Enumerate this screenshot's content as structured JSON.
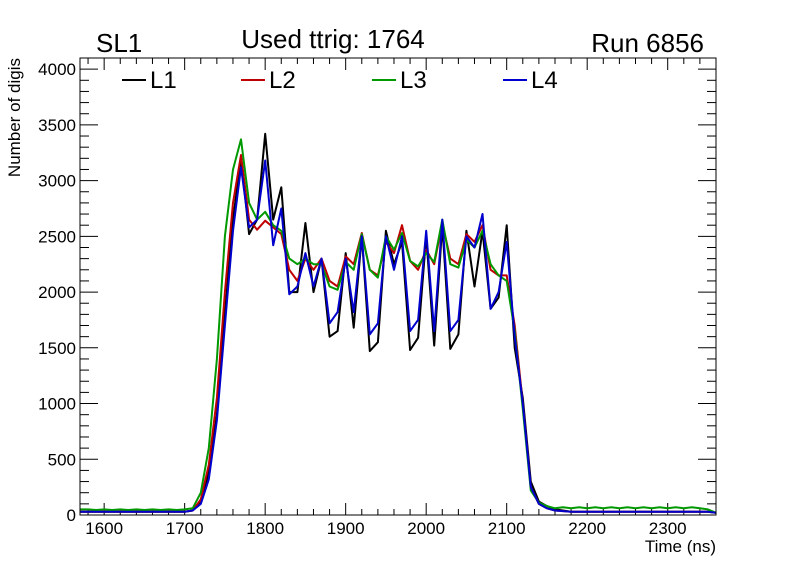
{
  "header": {
    "left_label": "SL1",
    "center_label": "Used ttrig: 1764",
    "right_label": "Run 6856"
  },
  "colors": {
    "L1": "#000000",
    "L2": "#c00000",
    "L3": "#009900",
    "L4": "#0000cc"
  },
  "chart_data": {
    "type": "line",
    "title": "Used ttrig: 1764",
    "xlabel": "Time (ns)",
    "ylabel": "Number of digis",
    "xlim": [
      1570,
      2360
    ],
    "ylim": [
      0,
      4100
    ],
    "xticks": [
      1600,
      1700,
      1800,
      1900,
      2000,
      2100,
      2200,
      2300
    ],
    "yticks": [
      0,
      500,
      1000,
      1500,
      2000,
      2500,
      3000,
      3500,
      4000
    ],
    "legend_position": "top",
    "x": [
      1570,
      1580,
      1590,
      1600,
      1610,
      1620,
      1630,
      1640,
      1650,
      1660,
      1670,
      1680,
      1690,
      1700,
      1710,
      1720,
      1730,
      1740,
      1750,
      1760,
      1770,
      1780,
      1790,
      1800,
      1810,
      1820,
      1830,
      1840,
      1850,
      1860,
      1870,
      1880,
      1890,
      1900,
      1910,
      1920,
      1930,
      1940,
      1950,
      1960,
      1970,
      1980,
      1990,
      2000,
      2010,
      2020,
      2030,
      2040,
      2050,
      2060,
      2070,
      2080,
      2090,
      2100,
      2110,
      2120,
      2130,
      2140,
      2150,
      2160,
      2170,
      2180,
      2190,
      2200,
      2210,
      2220,
      2230,
      2240,
      2250,
      2260,
      2270,
      2280,
      2290,
      2300,
      2310,
      2320,
      2330,
      2340,
      2350,
      2360
    ],
    "series": [
      {
        "name": "L1",
        "values": [
          30,
          30,
          30,
          30,
          30,
          30,
          30,
          30,
          30,
          30,
          30,
          30,
          30,
          30,
          40,
          120,
          380,
          900,
          1800,
          2650,
          3200,
          2520,
          2650,
          3420,
          2650,
          2940,
          2000,
          2000,
          2620,
          2000,
          2300,
          1600,
          1650,
          2350,
          1680,
          2500,
          1470,
          1550,
          2550,
          2250,
          2450,
          1480,
          1590,
          2500,
          1520,
          2600,
          1490,
          1620,
          2550,
          2050,
          2550,
          1850,
          1950,
          2600,
          1500,
          1050,
          300,
          120,
          80,
          50,
          40,
          30,
          30,
          30,
          30,
          30,
          30,
          30,
          30,
          30,
          30,
          30,
          30,
          30,
          30,
          30,
          30,
          30,
          30,
          20
        ]
      },
      {
        "name": "L2",
        "values": [
          30,
          30,
          30,
          30,
          30,
          30,
          30,
          30,
          30,
          30,
          30,
          30,
          30,
          30,
          40,
          140,
          450,
          1050,
          2000,
          2800,
          3230,
          2650,
          2560,
          2640,
          2580,
          2520,
          2200,
          2100,
          2300,
          2200,
          2300,
          2100,
          2050,
          2320,
          2250,
          2530,
          2200,
          2150,
          2450,
          2350,
          2600,
          2280,
          2200,
          2380,
          2250,
          2620,
          2300,
          2250,
          2520,
          2450,
          2600,
          2200,
          2150,
          2150,
          1700,
          1000,
          250,
          100,
          60,
          40,
          35,
          30,
          30,
          30,
          30,
          30,
          30,
          30,
          30,
          30,
          30,
          30,
          30,
          30,
          30,
          30,
          30,
          30,
          30,
          20
        ]
      },
      {
        "name": "L3",
        "values": [
          50,
          50,
          45,
          50,
          45,
          50,
          45,
          50,
          45,
          50,
          45,
          50,
          45,
          50,
          60,
          200,
          600,
          1400,
          2500,
          3100,
          3370,
          2800,
          2650,
          2720,
          2600,
          2550,
          2300,
          2250,
          2300,
          2250,
          2250,
          2050,
          2020,
          2270,
          2200,
          2520,
          2200,
          2130,
          2500,
          2380,
          2530,
          2280,
          2230,
          2350,
          2270,
          2650,
          2250,
          2220,
          2470,
          2400,
          2550,
          2250,
          2150,
          2100,
          1650,
          950,
          220,
          110,
          80,
          60,
          70,
          60,
          70,
          60,
          70,
          60,
          70,
          60,
          70,
          60,
          70,
          60,
          70,
          60,
          70,
          60,
          70,
          60,
          50,
          20
        ]
      },
      {
        "name": "L4",
        "values": [
          30,
          30,
          30,
          30,
          30,
          30,
          30,
          30,
          30,
          30,
          30,
          30,
          30,
          30,
          40,
          100,
          320,
          850,
          1700,
          2550,
          3120,
          2580,
          2650,
          3180,
          2420,
          2750,
          1980,
          2050,
          2350,
          2050,
          2300,
          1720,
          1820,
          2300,
          1820,
          2500,
          1620,
          1720,
          2500,
          2200,
          2500,
          1650,
          1750,
          2550,
          1650,
          2650,
          1650,
          1750,
          2500,
          2400,
          2700,
          1850,
          2000,
          2450,
          1600,
          1000,
          250,
          100,
          60,
          40,
          35,
          30,
          30,
          30,
          30,
          30,
          30,
          30,
          30,
          30,
          30,
          30,
          30,
          30,
          30,
          30,
          30,
          30,
          30,
          20
        ]
      }
    ]
  }
}
